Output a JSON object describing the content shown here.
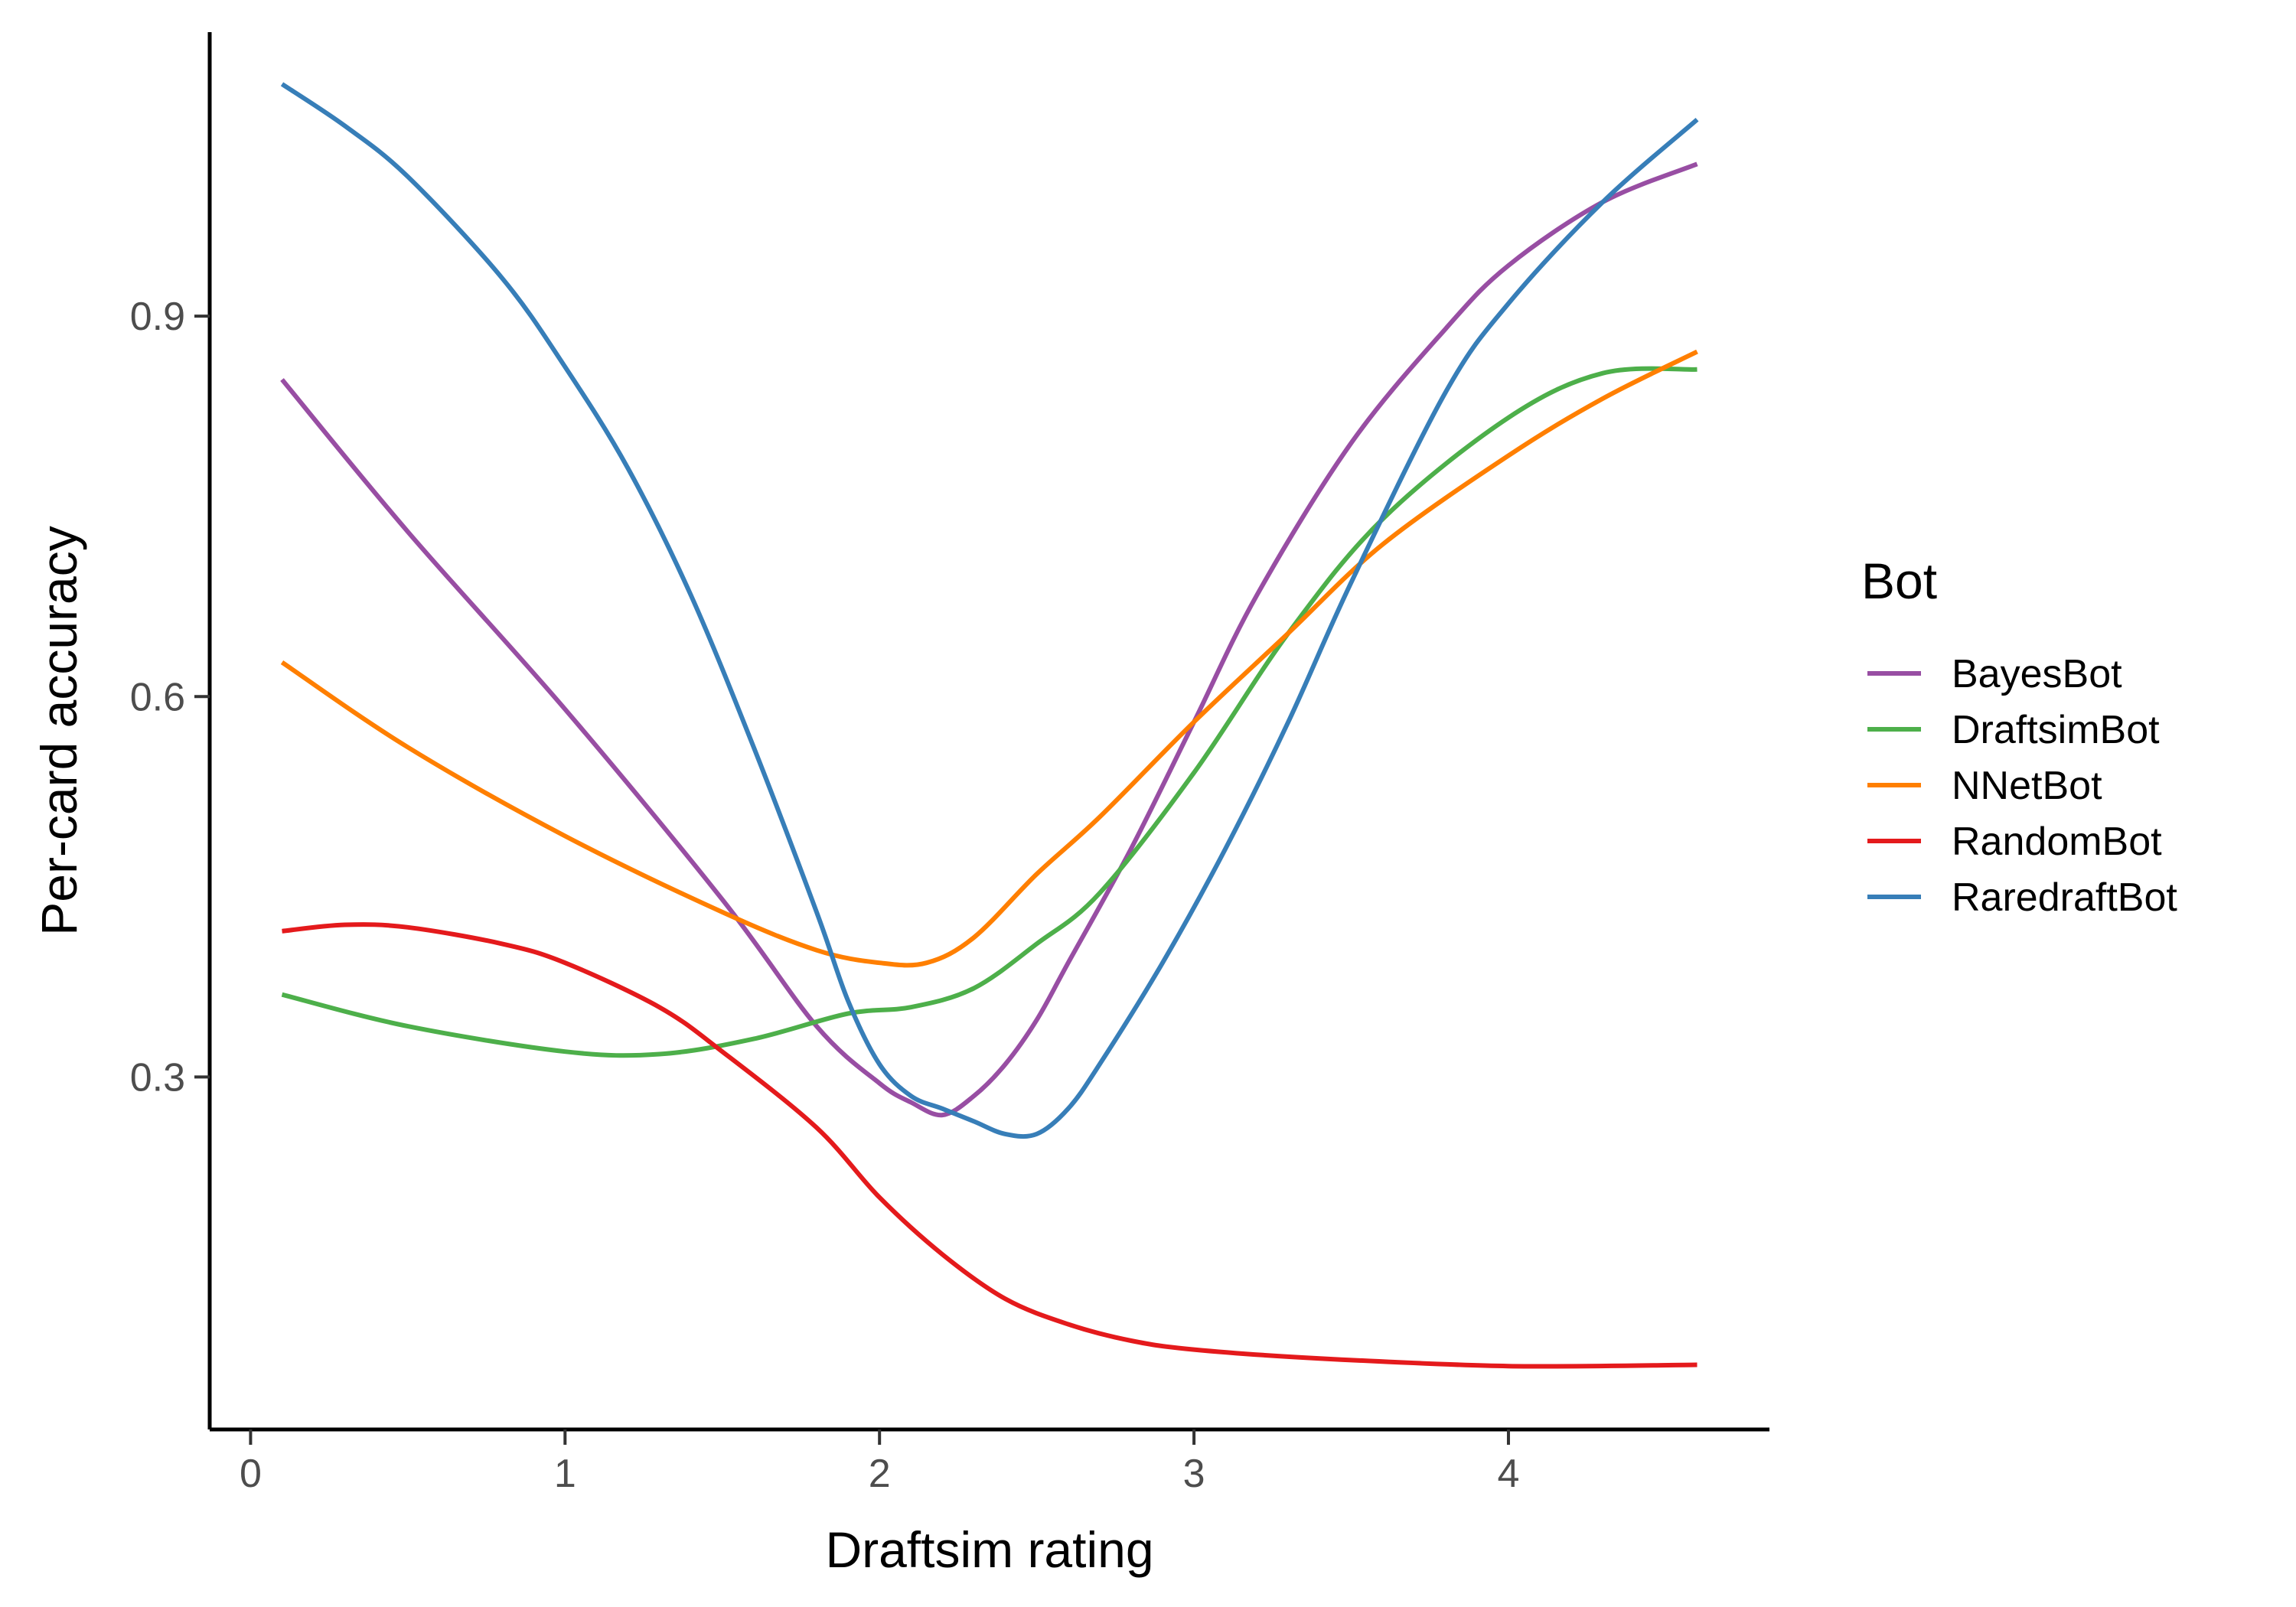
{
  "chart_data": {
    "type": "line",
    "title": "",
    "xlabel": "Draftsim rating",
    "ylabel": "Per-card accuracy",
    "xlim": [
      -0.13,
      4.83
    ],
    "ylim": [
      0.022,
      1.124
    ],
    "x_ticks": [
      0,
      1,
      2,
      3,
      4
    ],
    "x_tick_labels": [
      "0",
      "1",
      "2",
      "3",
      "4"
    ],
    "y_ticks": [
      0.3,
      0.6,
      0.9
    ],
    "y_tick_labels": [
      "0.3",
      "0.6",
      "0.9"
    ],
    "grid": false,
    "legend": {
      "title": "Bot",
      "position": "right"
    },
    "series": [
      {
        "name": "BayesBot",
        "color": "#984EA3",
        "x": [
          0.1,
          0.5,
          1.0,
          1.5,
          1.8,
          2.0,
          2.1,
          2.2,
          2.3,
          2.4,
          2.5,
          2.6,
          2.8,
          3.0,
          3.2,
          3.5,
          3.8,
          4.0,
          4.3,
          4.6
        ],
        "y": [
          0.85,
          0.73,
          0.59,
          0.44,
          0.34,
          0.295,
          0.28,
          0.27,
          0.285,
          0.31,
          0.345,
          0.39,
          0.48,
          0.58,
          0.68,
          0.8,
          0.89,
          0.94,
          0.99,
          1.02
        ]
      },
      {
        "name": "DraftsimBot",
        "color": "#4DAF4A",
        "x": [
          0.1,
          0.5,
          1.0,
          1.3,
          1.6,
          1.9,
          2.1,
          2.3,
          2.5,
          2.7,
          3.0,
          3.3,
          3.6,
          4.0,
          4.3,
          4.6
        ],
        "y": [
          0.365,
          0.34,
          0.32,
          0.318,
          0.33,
          0.35,
          0.355,
          0.37,
          0.405,
          0.445,
          0.54,
          0.65,
          0.74,
          0.82,
          0.855,
          0.858
        ]
      },
      {
        "name": "NNetBot",
        "color": "#FF7F00",
        "x": [
          0.1,
          0.5,
          1.0,
          1.5,
          1.8,
          2.0,
          2.15,
          2.3,
          2.5,
          2.7,
          3.0,
          3.3,
          3.6,
          4.0,
          4.3,
          4.6
        ],
        "y": [
          0.627,
          0.56,
          0.49,
          0.43,
          0.4,
          0.39,
          0.39,
          0.41,
          0.46,
          0.505,
          0.58,
          0.65,
          0.72,
          0.79,
          0.835,
          0.872
        ]
      },
      {
        "name": "RandomBot",
        "color": "#E41A1C",
        "x": [
          0.1,
          0.3,
          0.5,
          0.8,
          1.0,
          1.3,
          1.5,
          1.8,
          2.0,
          2.2,
          2.4,
          2.6,
          2.8,
          3.0,
          3.4,
          4.0,
          4.6
        ],
        "y": [
          0.415,
          0.42,
          0.418,
          0.405,
          0.39,
          0.355,
          0.32,
          0.26,
          0.205,
          0.16,
          0.125,
          0.105,
          0.092,
          0.085,
          0.078,
          0.072,
          0.073
        ]
      },
      {
        "name": "RaredraftBot",
        "color": "#377EB8",
        "x": [
          0.1,
          0.3,
          0.5,
          0.8,
          1.0,
          1.2,
          1.4,
          1.6,
          1.8,
          1.9,
          2.0,
          2.1,
          2.2,
          2.3,
          2.4,
          2.5,
          2.6,
          2.7,
          2.9,
          3.1,
          3.3,
          3.5,
          3.8,
          4.0,
          4.3,
          4.6
        ],
        "y": [
          1.083,
          1.05,
          1.01,
          0.93,
          0.86,
          0.78,
          0.68,
          0.56,
          0.43,
          0.36,
          0.31,
          0.285,
          0.275,
          0.265,
          0.255,
          0.255,
          0.275,
          0.31,
          0.39,
          0.48,
          0.58,
          0.69,
          0.84,
          0.91,
          0.99,
          1.055
        ]
      }
    ]
  }
}
